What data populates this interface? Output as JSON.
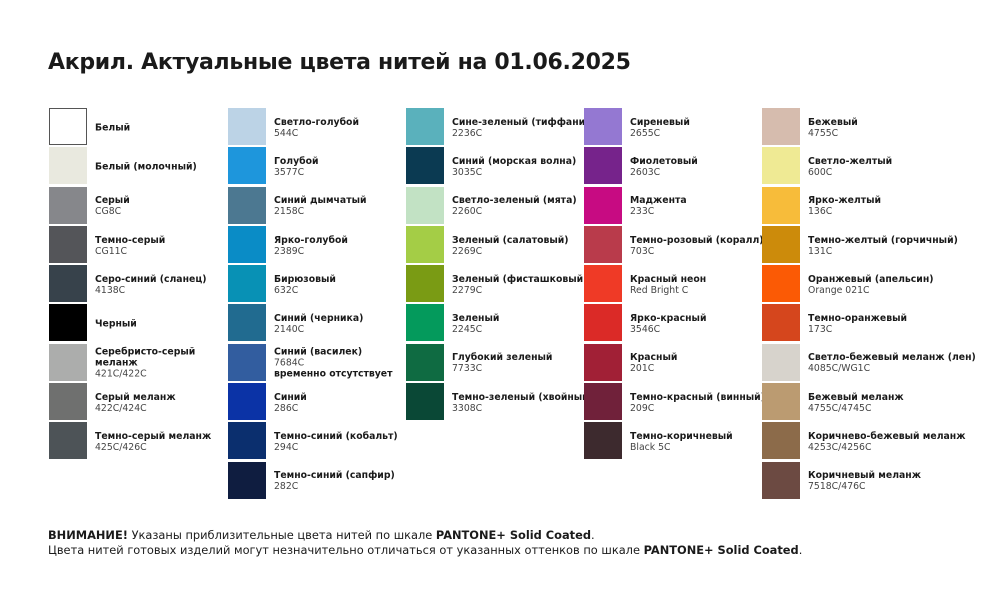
{
  "title": "Акрил. Актуальные цвета нитей на 01.06.2025",
  "columns": [
    [
      {
        "name": "Белый",
        "code": "",
        "color": "#ffffff"
      },
      {
        "name": "Белый (молочный)",
        "code": "",
        "color": "#e9e9df"
      },
      {
        "name": "Серый",
        "code": "CG8C",
        "color": "#86878b"
      },
      {
        "name": "Темно-серый",
        "code": "CG11C",
        "color": "#545559"
      },
      {
        "name": "Серо-синий (сланец)",
        "code": "4138C",
        "color": "#37424b"
      },
      {
        "name": "Черный",
        "code": "",
        "color": "#000000"
      },
      {
        "name": "Серебристо-серый меланж",
        "code": "421C/422C",
        "color": "#acadac"
      },
      {
        "name": "Серый меланж",
        "code": "422C/424C",
        "color": "#6f706f"
      },
      {
        "name": "Темно-серый меланж",
        "code": "425C/426C",
        "color": "#4d5357"
      }
    ],
    [
      {
        "name": "Светло-голубой",
        "code": "544C",
        "color": "#bcd3e6"
      },
      {
        "name": "Голубой",
        "code": "3577C",
        "color": "#1e96dc"
      },
      {
        "name": "Синий дымчатый",
        "code": "2158C",
        "color": "#4c7891"
      },
      {
        "name": "Ярко-голубой",
        "code": "2389C",
        "color": "#0a8cc6"
      },
      {
        "name": "Бирюзовый",
        "code": "632C",
        "color": "#0891b5"
      },
      {
        "name": "Синий (черника)",
        "code": "2140C",
        "color": "#216b90"
      },
      {
        "name": "Синий (василек)",
        "code": "7684C",
        "note": "временно отсутствует",
        "color": "#325d9f"
      },
      {
        "name": "Синий",
        "code": "286C",
        "color": "#0b33a6"
      },
      {
        "name": "Темно-синий (кобальт)",
        "code": "294C",
        "color": "#0b2f6e"
      },
      {
        "name": "Темно-синий (сапфир)",
        "code": "282C",
        "color": "#0f1d40"
      }
    ],
    [
      {
        "name": "Сине-зеленый (тиффани)",
        "code": "2236C",
        "color": "#5ab1bc"
      },
      {
        "name": "Синий (морская волна)",
        "code": "3035C",
        "color": "#0b3a52"
      },
      {
        "name": "Светло-зеленый (мята)",
        "code": "2260C",
        "color": "#c2e2c4"
      },
      {
        "name": "Зеленый (салатовый)",
        "code": "2269C",
        "color": "#a4cd46"
      },
      {
        "name": "Зеленый (фисташковый)",
        "code": "2279C",
        "color": "#7a9b14"
      },
      {
        "name": "Зеленый",
        "code": "2245C",
        "color": "#049a5c"
      },
      {
        "name": "Глубокий зеленый",
        "code": "7733C",
        "color": "#0f6b42"
      },
      {
        "name": "Темно-зеленый (хвойный)",
        "code": "3308C",
        "color": "#0a4836"
      }
    ],
    [
      {
        "name": "Сиреневый",
        "code": "2655C",
        "color": "#9478d2"
      },
      {
        "name": "Фиолетовый",
        "code": "2603C",
        "color": "#76238b"
      },
      {
        "name": "Маджента",
        "code": "233C",
        "color": "#c70b82"
      },
      {
        "name": "Темно-розовый (коралл)",
        "code": "703C",
        "color": "#b93b4b"
      },
      {
        "name": "Красный неон",
        "code": "Red Bright C",
        "color": "#ef3a26"
      },
      {
        "name": "Ярко-красный",
        "code": "3546C",
        "color": "#db2a27"
      },
      {
        "name": "Красный",
        "code": "201C",
        "color": "#a12036"
      },
      {
        "name": "Темно-красный (винный)",
        "code": "209C",
        "color": "#70213a"
      },
      {
        "name": "Темно-коричневый",
        "code": "Black 5C",
        "color": "#3d2a2e"
      }
    ],
    [
      {
        "name": "Бежевый",
        "code": "4755C",
        "color": "#d6bcae"
      },
      {
        "name": "Светло-желтый",
        "code": "600C",
        "color": "#efea94"
      },
      {
        "name": "Ярко-желтый",
        "code": "136C",
        "color": "#f7bc3a"
      },
      {
        "name": "Темно-желтый (горчичный)",
        "code": "131C",
        "color": "#cc8b0b"
      },
      {
        "name": "Оранжевый (апельсин)",
        "code": "Orange 021C",
        "color": "#fb5a05"
      },
      {
        "name": "Темно-оранжевый",
        "code": "173C",
        "color": "#d5461d"
      },
      {
        "name": "Светло-бежевый меланж (лен)",
        "code": "4085C/WG1C",
        "color": "#d7d3cc"
      },
      {
        "name": "Бежевый меланж",
        "code": "4755C/4745C",
        "color": "#bb9b71"
      },
      {
        "name": "Коричнево-бежевый меланж",
        "code": "4253C/4256C",
        "color": "#8c6b4a"
      },
      {
        "name": "Коричневый меланж",
        "code": "7518C/476C",
        "color": "#6c4a42"
      }
    ]
  ],
  "footer": {
    "warning": "ВНИМАНИЕ!",
    "line1": " Указаны приблизительные цвета нитей по шкале ",
    "pantone": "PANTONE+ Solid Coated",
    "dot": ".",
    "line2": "Цвета нитей готовых изделий могут незначительно отличаться от указанных оттенков по шкале ",
    "pantone2": "PANTONE+ Solid Coated",
    "dot2": "."
  }
}
